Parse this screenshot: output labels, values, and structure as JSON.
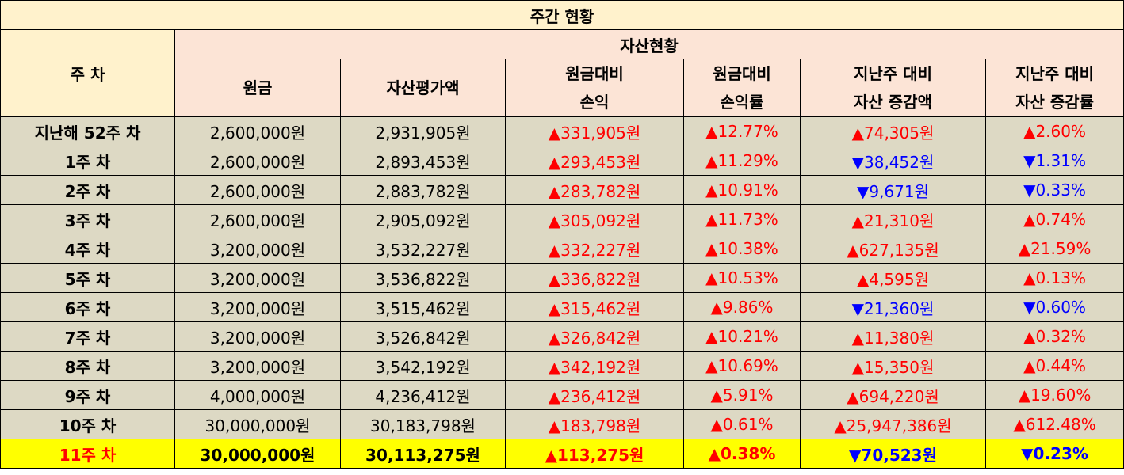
{
  "title": "주간 현황",
  "header": {
    "week_col": "주 차",
    "group": "자산현황",
    "cols": [
      [
        "원금"
      ],
      [
        "자산평가액"
      ],
      [
        "원금대비",
        "손익"
      ],
      [
        "원금대비",
        "손익률"
      ],
      [
        "지난주 대비",
        "자산 증감액"
      ],
      [
        "지난주 대비",
        "자산 증감률"
      ]
    ]
  },
  "colors": {
    "up": "#ff0000",
    "down": "#0000ff",
    "highlight": "#ffff00"
  },
  "rows": [
    {
      "week": "지난해 52주 차",
      "principal": "2,600,000원",
      "value": "2,931,905원",
      "pl": "▲331,905원",
      "pl_dir": "up",
      "plr": "▲12.77%",
      "plr_dir": "up",
      "chg": "▲74,305원",
      "chg_dir": "up",
      "chgr": "▲2.60%",
      "chgr_dir": "up"
    },
    {
      "week": "1주 차",
      "principal": "2,600,000원",
      "value": "2,893,453원",
      "pl": "▲293,453원",
      "pl_dir": "up",
      "plr": "▲11.29%",
      "plr_dir": "up",
      "chg": "▼38,452원",
      "chg_dir": "down",
      "chgr": "▼1.31%",
      "chgr_dir": "down"
    },
    {
      "week": "2주 차",
      "principal": "2,600,000원",
      "value": "2,883,782원",
      "pl": "▲283,782원",
      "pl_dir": "up",
      "plr": "▲10.91%",
      "plr_dir": "up",
      "chg": "▼9,671원",
      "chg_dir": "down",
      "chgr": "▼0.33%",
      "chgr_dir": "down"
    },
    {
      "week": "3주 차",
      "principal": "2,600,000원",
      "value": "2,905,092원",
      "pl": "▲305,092원",
      "pl_dir": "up",
      "plr": "▲11.73%",
      "plr_dir": "up",
      "chg": "▲21,310원",
      "chg_dir": "up",
      "chgr": "▲0.74%",
      "chgr_dir": "up"
    },
    {
      "week": "4주 차",
      "principal": "3,200,000원",
      "value": "3,532,227원",
      "pl": "▲332,227원",
      "pl_dir": "up",
      "plr": "▲10.38%",
      "plr_dir": "up",
      "chg": "▲627,135원",
      "chg_dir": "up",
      "chgr": "▲21.59%",
      "chgr_dir": "up"
    },
    {
      "week": "5주 차",
      "principal": "3,200,000원",
      "value": "3,536,822원",
      "pl": "▲336,822원",
      "pl_dir": "up",
      "plr": "▲10.53%",
      "plr_dir": "up",
      "chg": "▲4,595원",
      "chg_dir": "up",
      "chgr": "▲0.13%",
      "chgr_dir": "up"
    },
    {
      "week": "6주 차",
      "principal": "3,200,000원",
      "value": "3,515,462원",
      "pl": "▲315,462원",
      "pl_dir": "up",
      "plr": "▲9.86%",
      "plr_dir": "up",
      "chg": "▼21,360원",
      "chg_dir": "down",
      "chgr": "▼0.60%",
      "chgr_dir": "down"
    },
    {
      "week": "7주 차",
      "principal": "3,200,000원",
      "value": "3,526,842원",
      "pl": "▲326,842원",
      "pl_dir": "up",
      "plr": "▲10.21%",
      "plr_dir": "up",
      "chg": "▲11,380원",
      "chg_dir": "up",
      "chgr": "▲0.32%",
      "chgr_dir": "up"
    },
    {
      "week": "8주 차",
      "principal": "3,200,000원",
      "value": "3,542,192원",
      "pl": "▲342,192원",
      "pl_dir": "up",
      "plr": "▲10.69%",
      "plr_dir": "up",
      "chg": "▲15,350원",
      "chg_dir": "up",
      "chgr": "▲0.44%",
      "chgr_dir": "up"
    },
    {
      "week": "9주 차",
      "principal": "4,000,000원",
      "value": "4,236,412원",
      "pl": "▲236,412원",
      "pl_dir": "up",
      "plr": "▲5.91%",
      "plr_dir": "up",
      "chg": "▲694,220원",
      "chg_dir": "up",
      "chgr": "▲19.60%",
      "chgr_dir": "up"
    },
    {
      "week": "10주 차",
      "principal": "30,000,000원",
      "value": "30,183,798원",
      "pl": "▲183,798원",
      "pl_dir": "up",
      "plr": "▲0.61%",
      "plr_dir": "up",
      "chg": "▲25,947,386원",
      "chg_dir": "up",
      "chgr": "▲612.48%",
      "chgr_dir": "up"
    },
    {
      "week": "11주 차",
      "principal": "30,000,000원",
      "value": "30,113,275원",
      "pl": "▲113,275원",
      "pl_dir": "up",
      "plr": "▲0.38%",
      "plr_dir": "up",
      "chg": "▼70,523원",
      "chg_dir": "down",
      "chgr": "▼0.23%",
      "chgr_dir": "down",
      "highlight": true
    }
  ]
}
